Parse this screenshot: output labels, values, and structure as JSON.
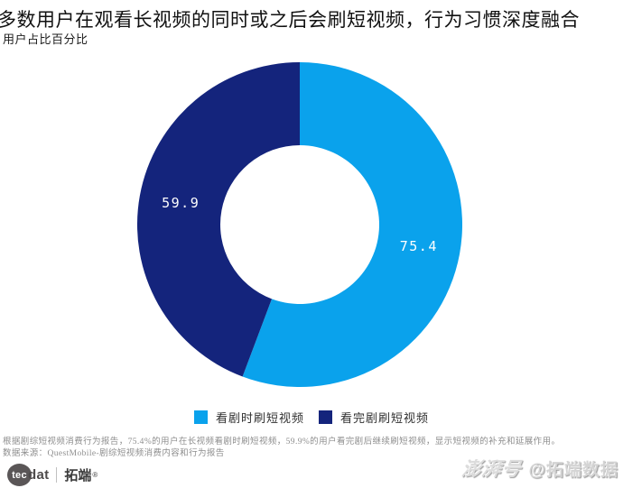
{
  "header": {
    "title": "多数用户在观看长视频的同时或之后会刷短视频，行为习惯深度融合",
    "subtitle": "用户占比百分比"
  },
  "chart_data": {
    "type": "pie",
    "subtype": "donut",
    "title": "用户占比百分比",
    "categories": [
      "看剧时刷短视频",
      "看完剧刷短视频"
    ],
    "values": [
      75.4,
      59.9
    ],
    "value_labels": [
      "75.4",
      "59.9"
    ],
    "unit": "%",
    "colors": [
      "#0aa2ec",
      "#14247c"
    ],
    "start_angle_deg": 0,
    "clockwise": true,
    "inner_radius_ratio": 0.49,
    "label_color": "#ffffff",
    "legend_position": "bottom"
  },
  "legend": {
    "items": [
      {
        "label": "看剧时刷短视频",
        "color": "#0aa2ec"
      },
      {
        "label": "看完剧刷短视频",
        "color": "#14247c"
      }
    ]
  },
  "footer": {
    "note": "根据剧综短视频消费行为报告，75.4%的用户在长视频看剧时刷短视频，59.9%的用户看完剧后继续刷短视频，显示短视频的补充和延展作用。",
    "source": "数据来源：QuestMobile-剧综短视频消费内容和行为报告"
  },
  "branding": {
    "logo_tec": "tec",
    "logo_dat": "dat",
    "logo_cn": "拓端",
    "logo_reg": "®",
    "watermark_platform": "澎湃号",
    "watermark_account": "@拓端数据"
  }
}
